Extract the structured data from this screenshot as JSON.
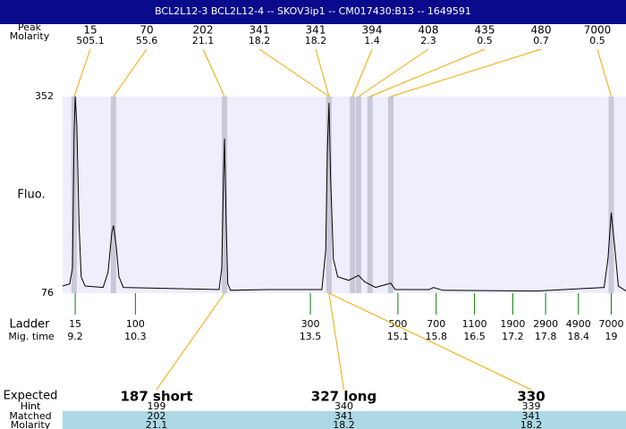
{
  "chart_data": {
    "type": "line",
    "title": "BCL2L12-3  BCL2L12-4 -- SKOV3ip1 -- CM017430:B13 -- 1649591",
    "y_label": "Fluo.",
    "xlim": [
      8.97,
      19.27
    ],
    "ylim": [
      76,
      352
    ],
    "yticks": [
      76,
      352
    ],
    "series": [
      {
        "color": "#000000",
        "x": [
          8.97,
          9.1,
          9.15,
          9.18,
          9.2,
          9.23,
          9.27,
          9.31,
          9.38,
          9.71,
          9.8,
          9.87,
          9.9,
          9.95,
          10.0,
          10.08,
          11.83,
          11.88,
          11.91,
          11.93,
          11.96,
          11.99,
          12.04,
          12.73,
          13.71,
          13.78,
          13.81,
          13.84,
          13.87,
          13.92,
          14.0,
          14.2,
          14.38,
          14.49,
          14.69,
          14.97,
          15.05,
          15.67,
          15.75,
          15.92,
          17.63,
          18.87,
          18.94,
          19.0,
          19.07,
          19.13,
          19.27
        ],
        "values": [
          86,
          89,
          111,
          299,
          352,
          312,
          174,
          99,
          86,
          84,
          105,
          161,
          171,
          142,
          99,
          84,
          81,
          111,
          237,
          293,
          174,
          89,
          80,
          81,
          81,
          136,
          274,
          343,
          237,
          124,
          99,
          94,
          101,
          92,
          84,
          90,
          81,
          81,
          84,
          80,
          79,
          84,
          124,
          189,
          136,
          86,
          79
        ]
      }
    ],
    "peaks": {
      "size_label": "Peak",
      "molarity_label": "Molarity",
      "size": [
        15,
        70,
        202,
        341,
        341,
        394,
        408,
        435,
        480,
        7000
      ],
      "molarity": [
        505.1,
        55.6,
        21.1,
        18.2,
        18.2,
        1.4,
        2.3,
        0.5,
        0.7,
        0.5
      ],
      "time": [
        9.18,
        9.9,
        11.93,
        13.84,
        13.84,
        14.27,
        14.38,
        14.59,
        14.97,
        19.0
      ]
    },
    "ladder": {
      "size_label": "Ladder",
      "time_label": "Mig. time",
      "size": [
        15,
        100,
        300,
        500,
        700,
        1100,
        1900,
        2900,
        4900,
        7000
      ],
      "time": [
        9.2,
        10.3,
        13.5,
        15.1,
        15.8,
        16.5,
        17.2,
        17.8,
        18.4,
        19
      ]
    },
    "expected": {
      "label": "Expected",
      "hint_label": "Hint",
      "matched_label": "Matched",
      "molarity_label": "Molarity",
      "names": [
        "187 short",
        "327 long",
        "330"
      ],
      "hint": [
        199,
        340,
        339
      ],
      "matched": [
        202,
        341,
        341
      ],
      "molarity": [
        21.1,
        18.2,
        18.2
      ],
      "time": [
        11.93,
        13.84,
        13.84
      ]
    }
  }
}
